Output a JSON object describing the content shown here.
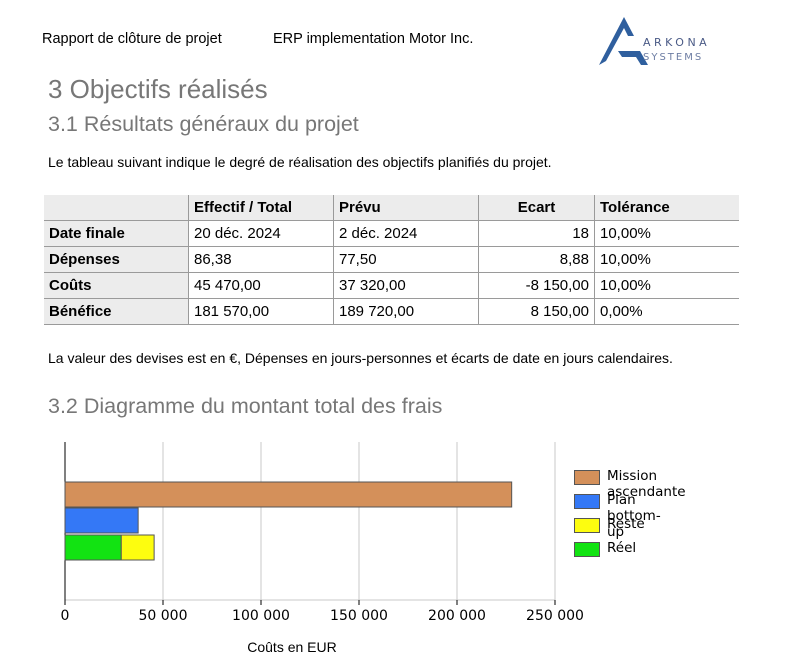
{
  "header": {
    "doc_title": "Rapport de clôture de projet",
    "project_name": "ERP implementation Motor Inc.",
    "logo_text_top": "ARKONA",
    "logo_text_bottom": "SYSTEMS",
    "logo_icon": "arkona-logo-icon"
  },
  "section": {
    "title": "3 Objectifs réalisés",
    "subsection_title": "3.1 Résultats généraux du projet",
    "intro": "Le tableau suivant indique le degré de réalisation des objectifs planifiés du projet.",
    "note": "La valeur des devises est en €, Dépenses en jours-personnes et écarts de date en jours calendaires.",
    "chart_title": "3.2 Diagramme du montant total des frais"
  },
  "table": {
    "headers": [
      "",
      "Effectif / Total",
      "Prévu",
      "Ecart",
      "Tolérance"
    ],
    "rows": [
      [
        "Date finale",
        "20 déc. 2024",
        "2 déc. 2024",
        "18",
        "10,00%"
      ],
      [
        "Dépenses",
        "86,38",
        "77,50",
        "8,88",
        "10,00%"
      ],
      [
        "Coûts",
        "45 470,00",
        "37 320,00",
        "-8 150,00",
        "10,00%"
      ],
      [
        "Bénéfice",
        "181 570,00",
        "189 720,00",
        "8 150,00",
        "0,00%"
      ]
    ]
  },
  "chart_data": {
    "type": "bar",
    "orientation": "horizontal",
    "xlabel": "Coûts en EUR",
    "xlim": [
      0,
      250000
    ],
    "xticks": [
      0,
      50000,
      100000,
      150000,
      200000,
      250000
    ],
    "xtick_labels": [
      "0",
      "50 000",
      "100 000",
      "150 000",
      "200 000",
      "250 000"
    ],
    "grid": true,
    "legend_position": "right",
    "series": [
      {
        "name": "Mission ascendante",
        "value": 227900,
        "color": "#d4905a"
      },
      {
        "name": "Plan bottom-up",
        "value": 37320,
        "color": "#3478f6"
      },
      {
        "name": "Reste",
        "value": 45470,
        "stack_base": 28700,
        "color": "#fdfd0f"
      },
      {
        "name": "Réel",
        "value": 28700,
        "color": "#12e312"
      }
    ]
  }
}
